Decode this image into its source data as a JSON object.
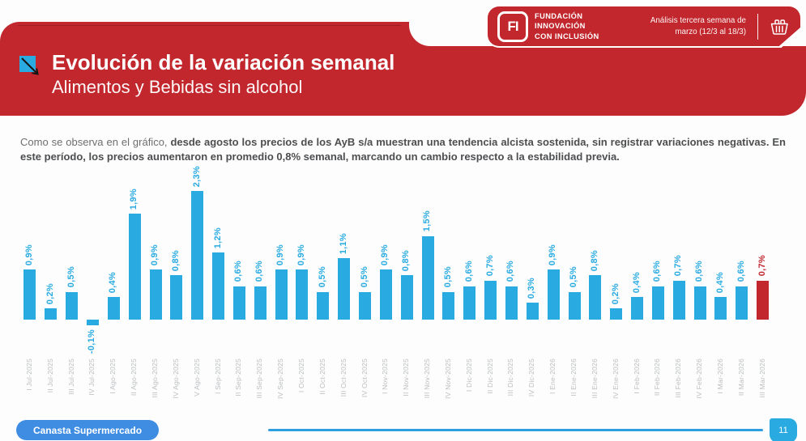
{
  "header": {
    "brand": {
      "logo_text": "FI",
      "name_lines": [
        "FUNDACIÓN",
        "INNOVACIÓN",
        "CON INCLUSIÓN"
      ]
    },
    "analysis_note_line1": "Análisis tercera semana de",
    "analysis_note_line2": "marzo (12/3 al 18/3)"
  },
  "title": {
    "main": "Evolución de la variación semanal",
    "subtitle": "Alimentos y Bebidas sin alcohol"
  },
  "intro": {
    "lead": "Como se observa en el gráfico, ",
    "bold": "desde agosto los precios de los AyB s/a muestran una tendencia alcista sostenida, sin registrar variaciones negativas. En este período, los precios aumentaron en promedio 0,8% semanal, marcando un cambio respecto a la estabilidad previa."
  },
  "chart_data": {
    "type": "bar",
    "title": "",
    "xlabel": "",
    "ylabel": "",
    "unit": "%",
    "ylim": [
      -0.3,
      2.6
    ],
    "grid": false,
    "legend": "none",
    "categories": [
      "I Jul-2025",
      "II Jul-2025",
      "III Jul-2025",
      "IV Jul-2025",
      "I Ago-2025",
      "II Ago-2025",
      "III Ago-2025",
      "IV Ago-2025",
      "V Ago-2025",
      "I Sep-2025",
      "II Sep-2025",
      "III Sep-2025",
      "IV Sep-2025",
      "I Oct-2025",
      "II Oct-2025",
      "III Oct-2025",
      "IV Oct-2025",
      "I Nov-2025",
      "II Nov-2025",
      "III Nov-2025",
      "IV Nov-2025",
      "I Dic-2025",
      "II Dic-2025",
      "III Dic-2025",
      "IV Dic-2025",
      "I Ene-2026",
      "II Ene-2026",
      "III Ene-2026",
      "IV Ene-2026",
      "I Feb-2026",
      "II Feb-2026",
      "III Feb-2026",
      "IV Feb-2026",
      "I Mar-2026",
      "II Mar-2026",
      "III Mar-2026"
    ],
    "values": [
      0.9,
      0.2,
      0.5,
      -0.1,
      0.4,
      1.9,
      0.9,
      0.8,
      2.3,
      1.2,
      0.6,
      0.6,
      0.9,
      0.9,
      0.5,
      1.1,
      0.5,
      0.9,
      0.8,
      1.5,
      0.5,
      0.6,
      0.7,
      0.6,
      0.3,
      0.9,
      0.5,
      0.8,
      0.2,
      0.4,
      0.6,
      0.7,
      0.6,
      0.4,
      0.6,
      0.7
    ],
    "value_labels": [
      "0,9%",
      "0,2%",
      "0,5%",
      "-0,1%",
      "0,4%",
      "1,9%",
      "0,9%",
      "0,8%",
      "2,3%",
      "1,2%",
      "0,6%",
      "0,6%",
      "0,9%",
      "0,9%",
      "0,5%",
      "1,1%",
      "0,5%",
      "0,9%",
      "0,8%",
      "1,5%",
      "0,5%",
      "0,6%",
      "0,7%",
      "0,6%",
      "0,3%",
      "0,9%",
      "0,5%",
      "0,8%",
      "0,2%",
      "0,4%",
      "0,6%",
      "0,7%",
      "0,6%",
      "0,4%",
      "0,6%",
      "0,7%"
    ],
    "bar_color": "#29ABE2",
    "highlight_color": "#C1272D",
    "highlight_index": 35,
    "axis_label_color": "#BCBEC0"
  },
  "footer": {
    "tag": "Canasta Supermercado",
    "page": "11"
  },
  "colors": {
    "banner_red": "#C1272D",
    "bar_cyan": "#29ABE2",
    "pill_blue": "#3E8DE3",
    "text_gray": "#58595B"
  }
}
